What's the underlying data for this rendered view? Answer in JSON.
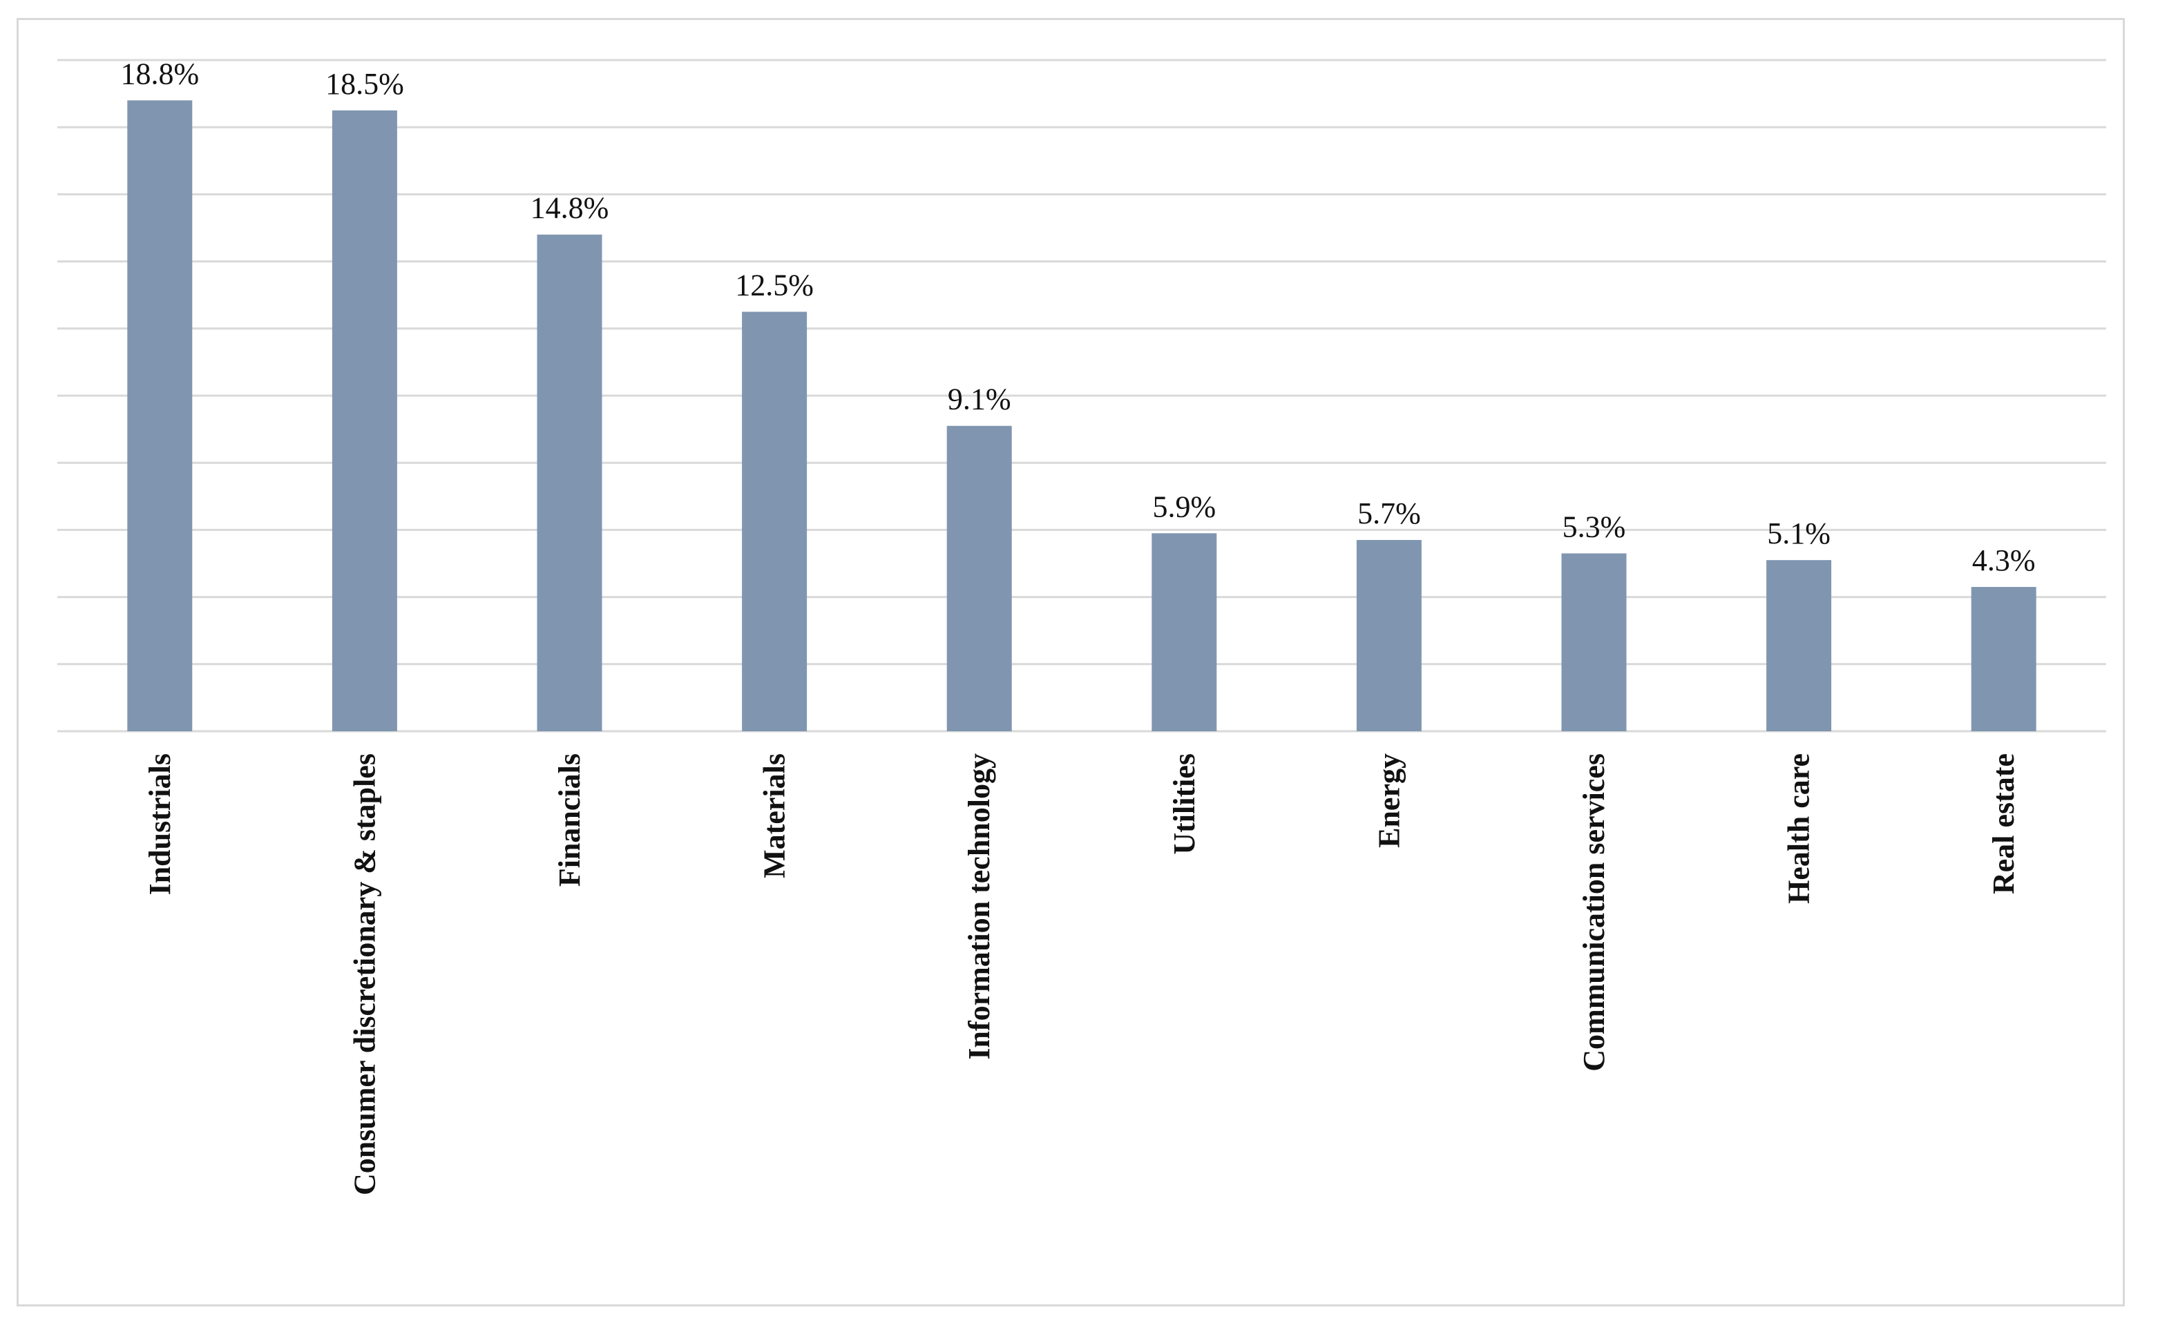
{
  "chart_data": {
    "type": "bar",
    "categories": [
      "Industrials",
      "Consumer discretionary & staples",
      "Financials",
      "Materials",
      "Information technology",
      "Utilities",
      "Energy",
      "Communication services",
      "Health care",
      "Real estate"
    ],
    "values": [
      18.8,
      18.5,
      14.8,
      12.5,
      9.1,
      5.9,
      5.7,
      5.3,
      5.1,
      4.3
    ],
    "value_labels": [
      "18.8%",
      "18.5%",
      "14.8%",
      "12.5%",
      "9.1%",
      "5.9%",
      "5.7%",
      "5.3%",
      "5.1%",
      "4.3%"
    ],
    "ylim": [
      0,
      20
    ],
    "y_grid_step": 2,
    "grid": true,
    "legend": "none",
    "bar_color": "#8096b0",
    "grid_color": "#d9d9d9"
  }
}
